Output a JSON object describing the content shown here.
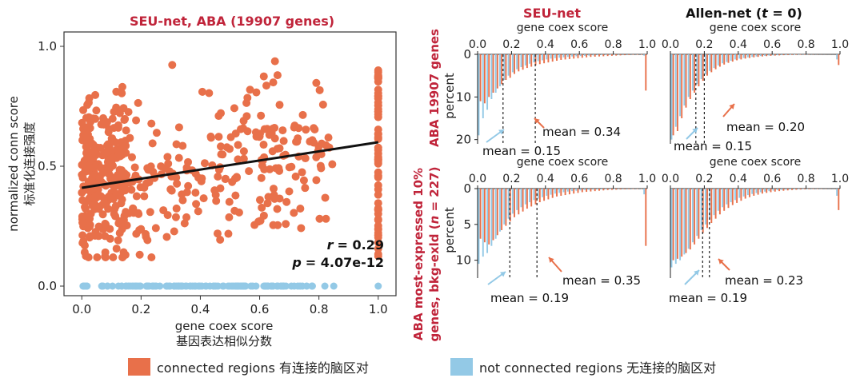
{
  "colors": {
    "connected": "#E8704A",
    "not_connected": "#93C9E6",
    "title_red": "#C0243A",
    "fit_line": "#111111"
  },
  "chart_data": [
    {
      "id": "scatter",
      "type": "scatter",
      "title": "SEU-net, ABA (19907 genes)",
      "xlabel": "gene coex score",
      "xlabel_cn": "基因表达相似分数",
      "ylabel": "normalized conn score",
      "ylabel_cn": "标准化连接强度",
      "xlim": [
        -0.06,
        1.06
      ],
      "ylim": [
        -0.04,
        1.06
      ],
      "xticks": [
        "0.0",
        "0.2",
        "0.4",
        "0.6",
        "0.8",
        "1.0"
      ],
      "yticks": [
        "0.0",
        "0.5",
        "1.0"
      ],
      "fit_line": {
        "x": [
          0.0,
          1.0
        ],
        "y": [
          0.41,
          0.6
        ]
      },
      "stats": {
        "r_label": "r",
        "r_value": "= 0.29",
        "p_label": "p",
        "p_value": "= 4.07e-12"
      },
      "series": [
        {
          "name": "connected regions 有连接的脑区对",
          "description": "approx. 600 orange points; dense band 0.25–0.8 in y, plus a dense column at x = 1.0"
        },
        {
          "name": "not connected regions 无连接的脑区对",
          "description": "dense row at y = 0 spanning x 0.0–0.78, plus points at 0.82, 0.85, 1.0"
        }
      ]
    },
    {
      "id": "hist_top_left",
      "type": "bar",
      "column_title": "SEU-net",
      "xlabel": "gene coex score",
      "ylabel": "percent",
      "xticks": [
        "0.0",
        "0.2",
        "0.4",
        "0.6",
        "0.8",
        "1.0"
      ],
      "yticks": [
        "0",
        "10",
        "20"
      ],
      "ylim": [
        0,
        21
      ],
      "bin_starts": [
        0.0,
        0.025,
        0.05,
        0.075,
        0.1,
        0.125,
        0.15,
        0.175,
        0.2,
        0.225,
        0.25,
        0.275,
        0.3,
        0.325,
        0.35,
        0.375,
        0.4,
        0.425,
        0.45,
        0.475,
        0.5,
        0.525,
        0.55,
        0.575,
        0.6,
        0.625,
        0.65,
        0.675,
        0.7,
        0.725,
        0.75,
        0.775,
        0.8,
        0.825,
        0.85,
        0.875,
        0.9,
        0.925,
        0.95,
        0.975
      ],
      "connected": [
        11.0,
        11.5,
        10.0,
        9.0,
        8.0,
        7.0,
        6.0,
        5.5,
        4.6,
        4.0,
        3.6,
        3.2,
        2.9,
        2.6,
        2.3,
        2.1,
        1.9,
        1.7,
        1.5,
        1.3,
        1.2,
        1.1,
        1.0,
        0.9,
        0.8,
        0.7,
        0.6,
        0.55,
        0.5,
        0.45,
        0.4,
        0.35,
        0.3,
        0.25,
        0.2,
        0.15,
        0.1,
        0.1,
        0.1,
        8.5
      ],
      "not_connected": [
        19.0,
        15.0,
        13.0,
        10.5,
        9.0,
        7.5,
        6.0,
        5.0,
        4.2,
        3.5,
        3.0,
        2.6,
        2.2,
        1.9,
        1.6,
        1.4,
        1.2,
        1.0,
        0.9,
        0.8,
        0.7,
        0.6,
        0.5,
        0.45,
        0.4,
        0.35,
        0.3,
        0.25,
        0.2,
        0.15,
        0.12,
        0.1,
        0.08,
        0.06,
        0.05,
        0.04,
        0.03,
        0.02,
        0.01,
        0.3
      ],
      "mean_connected": 0.34,
      "mean_not_connected": 0.15,
      "mean_connected_label": "mean = 0.34",
      "mean_not_connected_label": "mean = 0.15"
    },
    {
      "id": "hist_top_right",
      "type": "bar",
      "column_title": "Allen-net",
      "column_title_t": "t",
      "column_title_suffix": " = 0)",
      "xlabel": "gene coex score",
      "xticks": [
        "0.0",
        "0.2",
        "0.4",
        "0.6",
        "0.8",
        "1.0"
      ],
      "ylim": [
        0,
        21
      ],
      "bin_starts": [
        0.0,
        0.025,
        0.05,
        0.075,
        0.1,
        0.125,
        0.15,
        0.175,
        0.2,
        0.225,
        0.25,
        0.275,
        0.3,
        0.325,
        0.35,
        0.375,
        0.4,
        0.425,
        0.45,
        0.475,
        0.5,
        0.525,
        0.55,
        0.575,
        0.6,
        0.625,
        0.65,
        0.675,
        0.7,
        0.725,
        0.75,
        0.775,
        0.8,
        0.825,
        0.85,
        0.875,
        0.9,
        0.925,
        0.95,
        0.975
      ],
      "connected": [
        19.0,
        18.0,
        15.0,
        12.5,
        10.5,
        9.0,
        7.5,
        6.2,
        5.0,
        4.2,
        3.5,
        2.9,
        2.4,
        2.0,
        1.7,
        1.4,
        1.2,
        1.0,
        0.85,
        0.7,
        0.6,
        0.5,
        0.42,
        0.35,
        0.3,
        0.25,
        0.2,
        0.17,
        0.14,
        0.12,
        0.1,
        0.08,
        0.06,
        0.05,
        0.04,
        0.03,
        0.02,
        0.02,
        0.01,
        2.5
      ],
      "not_connected": [
        20.0,
        17.0,
        14.5,
        12.0,
        10.0,
        8.5,
        7.0,
        5.8,
        4.7,
        3.9,
        3.2,
        2.6,
        2.1,
        1.8,
        1.5,
        1.2,
        1.0,
        0.85,
        0.7,
        0.6,
        0.5,
        0.4,
        0.35,
        0.3,
        0.25,
        0.2,
        0.17,
        0.14,
        0.12,
        0.1,
        0.08,
        0.06,
        0.05,
        0.04,
        0.03,
        0.02,
        0.02,
        0.01,
        0.01,
        1.2
      ],
      "mean_connected": 0.2,
      "mean_not_connected": 0.15,
      "mean_connected_label": "mean = 0.20",
      "mean_not_connected_label": "mean = 0.15"
    },
    {
      "id": "hist_bottom_left",
      "type": "bar",
      "xlabel": "gene coex score",
      "ylabel": "percent",
      "xticks": [
        "0.0",
        "0.2",
        "0.4",
        "0.6",
        "0.8",
        "1.0"
      ],
      "yticks": [
        "0",
        "5",
        "10"
      ],
      "ylim": [
        0,
        12.5
      ],
      "bin_starts": [
        0.0,
        0.025,
        0.05,
        0.075,
        0.1,
        0.125,
        0.15,
        0.175,
        0.2,
        0.225,
        0.25,
        0.275,
        0.3,
        0.325,
        0.35,
        0.375,
        0.4,
        0.425,
        0.45,
        0.475,
        0.5,
        0.525,
        0.55,
        0.575,
        0.6,
        0.625,
        0.65,
        0.675,
        0.7,
        0.725,
        0.75,
        0.775,
        0.8,
        0.825,
        0.85,
        0.875,
        0.9,
        0.925,
        0.95,
        0.975
      ],
      "connected": [
        7.0,
        7.5,
        7.8,
        7.2,
        6.5,
        5.8,
        5.2,
        4.6,
        4.0,
        3.6,
        3.2,
        2.8,
        2.5,
        2.2,
        1.9,
        1.7,
        1.5,
        1.3,
        1.1,
        1.0,
        0.9,
        0.8,
        0.7,
        0.6,
        0.5,
        0.45,
        0.4,
        0.35,
        0.3,
        0.25,
        0.2,
        0.18,
        0.15,
        0.12,
        0.1,
        0.08,
        0.06,
        0.05,
        0.04,
        8.0
      ],
      "not_connected": [
        10.5,
        9.5,
        9.0,
        8.0,
        7.0,
        6.0,
        5.0,
        4.2,
        3.5,
        3.0,
        2.6,
        2.2,
        1.9,
        1.6,
        1.4,
        1.2,
        1.0,
        0.85,
        0.7,
        0.6,
        0.5,
        0.42,
        0.35,
        0.3,
        0.25,
        0.2,
        0.17,
        0.14,
        0.12,
        0.1,
        0.08,
        0.06,
        0.05,
        0.04,
        0.03,
        0.02,
        0.02,
        0.01,
        0.01,
        0.8
      ],
      "mean_connected": 0.35,
      "mean_not_connected": 0.19,
      "mean_connected_label": "mean = 0.35",
      "mean_not_connected_label": "mean = 0.19"
    },
    {
      "id": "hist_bottom_right",
      "type": "bar",
      "xlabel": "gene coex score",
      "xticks": [
        "0.0",
        "0.2",
        "0.4",
        "0.6",
        "0.8",
        "1.0"
      ],
      "ylim": [
        0,
        12.5
      ],
      "bin_starts": [
        0.0,
        0.025,
        0.05,
        0.075,
        0.1,
        0.125,
        0.15,
        0.175,
        0.2,
        0.225,
        0.25,
        0.275,
        0.3,
        0.325,
        0.35,
        0.375,
        0.4,
        0.425,
        0.45,
        0.475,
        0.5,
        0.525,
        0.55,
        0.575,
        0.6,
        0.625,
        0.65,
        0.675,
        0.7,
        0.725,
        0.75,
        0.775,
        0.8,
        0.825,
        0.85,
        0.875,
        0.9,
        0.925,
        0.95,
        0.975
      ],
      "connected": [
        10.0,
        9.8,
        9.5,
        9.0,
        8.5,
        7.8,
        7.0,
        6.2,
        5.5,
        4.8,
        4.2,
        3.6,
        3.1,
        2.7,
        2.3,
        2.0,
        1.7,
        1.4,
        1.2,
        1.0,
        0.85,
        0.7,
        0.6,
        0.5,
        0.42,
        0.35,
        0.3,
        0.25,
        0.2,
        0.16,
        0.13,
        0.1,
        0.08,
        0.06,
        0.05,
        0.04,
        0.03,
        0.02,
        0.02,
        3.0
      ],
      "not_connected": [
        11.0,
        10.5,
        10.0,
        9.2,
        8.4,
        7.5,
        6.6,
        5.8,
        5.0,
        4.3,
        3.7,
        3.1,
        2.6,
        2.2,
        1.9,
        1.6,
        1.3,
        1.1,
        0.9,
        0.75,
        0.62,
        0.5,
        0.42,
        0.35,
        0.28,
        0.22,
        0.18,
        0.14,
        0.11,
        0.09,
        0.07,
        0.05,
        0.04,
        0.03,
        0.02,
        0.02,
        0.01,
        0.01,
        0.01,
        1.0
      ],
      "mean_connected": 0.23,
      "mean_not_connected": 0.19,
      "mean_connected_label": "mean = 0.23",
      "mean_not_connected_label": "mean = 0.19"
    }
  ],
  "row_labels": {
    "top": "ABA 19907 genes",
    "bottom_line1": "ABA most-expressed 10%",
    "bottom_line2_prefix": "genes, bkg-exld (",
    "bottom_line2_n": "n",
    "bottom_line2_suffix": " = 227)"
  },
  "legend": {
    "connected_label": "connected regions 有连接的脑区对",
    "not_connected_label": "not connected regions 无连接的脑区对"
  }
}
